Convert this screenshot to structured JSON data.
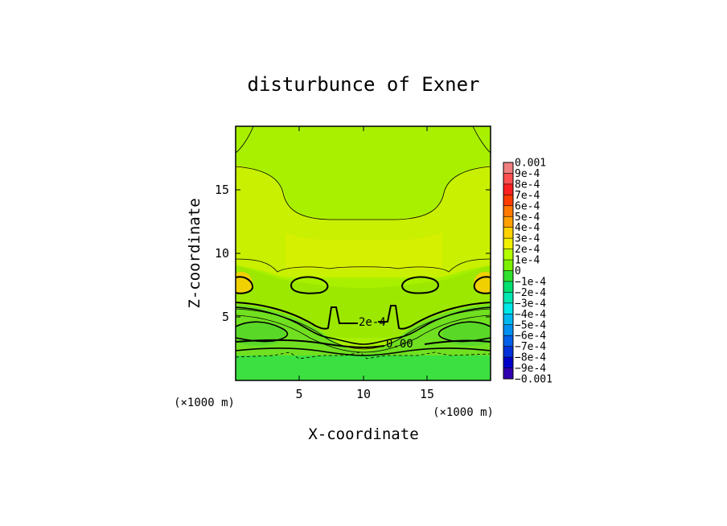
{
  "chart_data": {
    "type": "heatmap",
    "title": "disturbunce of Exner",
    "xlabel": "X-coordinate",
    "ylabel": "Z-coordinate",
    "x_unit": "(×1000 m)",
    "y_unit": "(×1000 m)",
    "xlim": [
      0,
      20
    ],
    "ylim": [
      0,
      20
    ],
    "x_ticks": [
      5,
      10,
      15
    ],
    "y_ticks": [
      5,
      10,
      15
    ],
    "x_tick_labels": [
      "5",
      "10",
      "15"
    ],
    "y_tick_labels": [
      "5",
      "10",
      "15"
    ],
    "contour_labels": [
      "2e-4",
      "0.00"
    ],
    "colorbar": {
      "labels": [
        "0.001",
        "9e-4",
        "8e-4",
        "7e-4",
        "6e-4",
        "5e-4",
        "4e-4",
        "3e-4",
        "2e-4",
        "1e-4",
        "0",
        "−1e-4",
        "−2e-4",
        "−3e-4",
        "−4e-4",
        "−5e-4",
        "−6e-4",
        "−7e-4",
        "−8e-4",
        "−9e-4",
        "−0.001"
      ],
      "colors": [
        "#f08080",
        "#ff5050",
        "#ff2020",
        "#ff3c00",
        "#ff7800",
        "#ffa000",
        "#ffd200",
        "#f0f000",
        "#b4ff00",
        "#7cf000",
        "#30e030",
        "#00e070",
        "#00e8b0",
        "#00e8e8",
        "#00b8f0",
        "#0090f0",
        "#0060e8",
        "#0030d8",
        "#0000c8",
        "#3000b0",
        "#5000a0"
      ]
    }
  }
}
